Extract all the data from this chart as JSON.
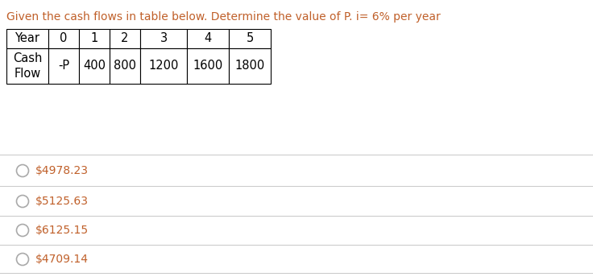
{
  "title": "Given the cash flows in table below. Determine the value of P. i= 6% per year",
  "title_color": "#c0602a",
  "title_fontsize": 10.0,
  "table_years": [
    "Year",
    "0",
    "1",
    "2",
    "3",
    "4",
    "5"
  ],
  "table_cash_values": [
    "-P",
    "400",
    "800",
    "1200",
    "1600",
    "1800"
  ],
  "options": [
    "$4978.23",
    "$5125.63",
    "$6125.15",
    "$4709.14"
  ],
  "option_color": "#c0602a",
  "bg_color": "#ffffff",
  "line_color": "#cccccc",
  "option_fontsize": 10.0,
  "table_fontsize": 10.5
}
